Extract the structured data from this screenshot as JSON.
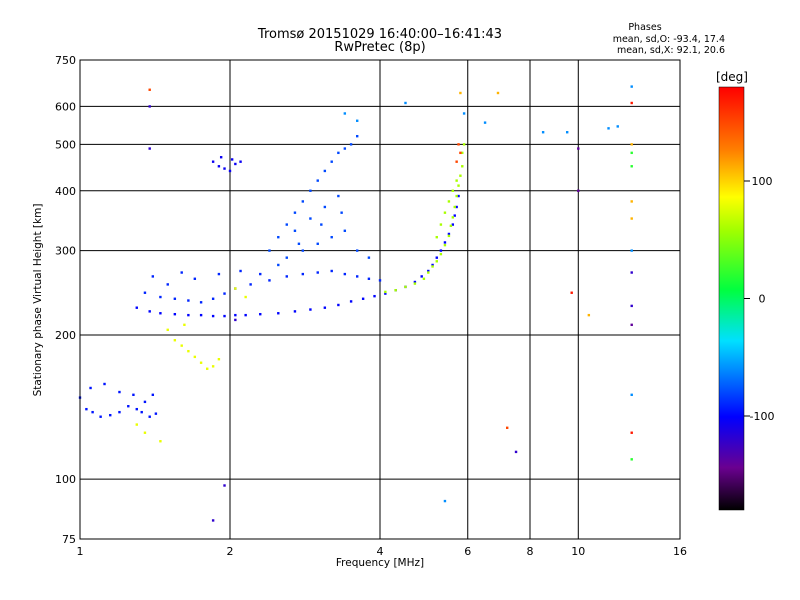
{
  "chart_data": {
    "type": "scatter",
    "title": "Tromsø 20151029 16:40:00–16:41:43",
    "subtitle": "RwPretec (8p)",
    "xlabel": "Frequency [MHz]",
    "ylabel": "Stationary phase Virtual Height [km]",
    "x_scale": "log",
    "y_scale": "log",
    "xlim": [
      1,
      16
    ],
    "ylim": [
      75,
      750
    ],
    "x_ticks": [
      1,
      2,
      4,
      6,
      8,
      10,
      16
    ],
    "x_tick_labels": [
      "1",
      "2",
      "4",
      "6",
      "8",
      "10",
      "16"
    ],
    "x_gridlines": [
      2,
      4,
      6,
      8,
      10
    ],
    "y_ticks": [
      75,
      100,
      200,
      300,
      400,
      500,
      600,
      750
    ],
    "y_tick_labels": [
      "75",
      "100",
      "200",
      "300",
      "400",
      "500",
      "600",
      "750"
    ],
    "y_gridlines": [
      100,
      200,
      300,
      400,
      500,
      600
    ],
    "grid": true,
    "stats": {
      "header": "Phases",
      "line_o": "mean, sd,O: -93.4, 17.4",
      "line_x": "mean, sd,X:  92.1, 20.6"
    },
    "colorbar": {
      "unit": "[deg]",
      "range": [
        -180,
        180
      ],
      "ticks": [
        100,
        0,
        -100
      ],
      "tick_labels": [
        "100",
        "0",
        "-100"
      ],
      "colormap": "rainbow"
    },
    "traces": [
      {
        "name": "",
        "phase": -95,
        "points": [
          [
            1.0,
            148
          ],
          [
            1.03,
            140
          ],
          [
            1.06,
            138
          ],
          [
            1.1,
            135
          ],
          [
            1.15,
            136
          ],
          [
            1.2,
            138
          ],
          [
            1.25,
            142
          ],
          [
            1.3,
            140
          ],
          [
            1.35,
            145
          ],
          [
            1.4,
            150
          ],
          [
            1.05,
            155
          ],
          [
            1.12,
            158
          ],
          [
            1.2,
            152
          ],
          [
            1.28,
            150
          ],
          [
            1.33,
            138
          ],
          [
            1.38,
            135
          ],
          [
            1.42,
            137
          ]
        ]
      },
      {
        "name": "",
        "phase": -100,
        "points": [
          [
            1.3,
            228
          ],
          [
            1.38,
            224
          ],
          [
            1.45,
            222
          ],
          [
            1.55,
            221
          ],
          [
            1.65,
            220
          ],
          [
            1.75,
            220
          ],
          [
            1.85,
            219
          ],
          [
            1.95,
            219
          ],
          [
            2.05,
            220
          ],
          [
            2.15,
            220
          ],
          [
            2.3,
            221
          ],
          [
            2.5,
            222
          ],
          [
            2.7,
            224
          ],
          [
            2.9,
            226
          ],
          [
            3.1,
            228
          ],
          [
            3.3,
            231
          ],
          [
            3.5,
            235
          ],
          [
            3.7,
            238
          ],
          [
            3.9,
            241
          ],
          [
            4.1,
            244
          ],
          [
            4.3,
            248
          ],
          [
            4.5,
            252
          ],
          [
            4.7,
            258
          ],
          [
            4.85,
            265
          ],
          [
            5.0,
            272
          ],
          [
            5.1,
            280
          ],
          [
            5.2,
            290
          ],
          [
            5.3,
            300
          ],
          [
            5.4,
            312
          ],
          [
            5.5,
            325
          ],
          [
            5.6,
            340
          ],
          [
            5.65,
            355
          ],
          [
            5.7,
            370
          ],
          [
            5.75,
            390
          ]
        ]
      },
      {
        "name": "",
        "phase": -90,
        "points": [
          [
            1.35,
            245
          ],
          [
            1.45,
            240
          ],
          [
            1.55,
            238
          ],
          [
            1.65,
            236
          ],
          [
            1.75,
            234
          ],
          [
            1.85,
            238
          ],
          [
            1.95,
            244
          ],
          [
            2.05,
            250
          ],
          [
            2.2,
            255
          ],
          [
            2.4,
            260
          ],
          [
            2.6,
            265
          ],
          [
            2.8,
            268
          ],
          [
            3.0,
            270
          ],
          [
            3.2,
            272
          ],
          [
            3.4,
            268
          ],
          [
            3.6,
            265
          ],
          [
            3.8,
            262
          ],
          [
            4.0,
            260
          ],
          [
            1.5,
            255
          ],
          [
            1.7,
            262
          ],
          [
            1.9,
            268
          ],
          [
            2.1,
            272
          ],
          [
            2.3,
            268
          ],
          [
            1.4,
            265
          ],
          [
            1.6,
            270
          ]
        ]
      },
      {
        "name": "",
        "phase": -80,
        "points": [
          [
            2.4,
            300
          ],
          [
            2.5,
            320
          ],
          [
            2.6,
            340
          ],
          [
            2.7,
            360
          ],
          [
            2.8,
            380
          ],
          [
            2.9,
            400
          ],
          [
            3.0,
            420
          ],
          [
            3.1,
            440
          ],
          [
            3.2,
            460
          ],
          [
            3.3,
            480
          ],
          [
            3.4,
            490
          ],
          [
            3.5,
            500
          ],
          [
            3.6,
            520
          ],
          [
            2.6,
            290
          ],
          [
            2.8,
            300
          ],
          [
            3.0,
            310
          ],
          [
            3.2,
            320
          ],
          [
            3.4,
            330
          ],
          [
            3.6,
            300
          ],
          [
            3.8,
            290
          ],
          [
            2.7,
            330
          ],
          [
            2.9,
            350
          ],
          [
            3.1,
            370
          ],
          [
            3.3,
            390
          ],
          [
            2.5,
            280
          ],
          [
            2.75,
            310
          ],
          [
            3.05,
            340
          ],
          [
            3.35,
            360
          ]
        ]
      },
      {
        "name": "",
        "phase": -105,
        "points": [
          [
            1.85,
            460
          ],
          [
            1.9,
            450
          ],
          [
            1.95,
            445
          ],
          [
            2.0,
            440
          ],
          [
            2.05,
            455
          ],
          [
            2.1,
            460
          ],
          [
            1.92,
            470
          ],
          [
            2.02,
            465
          ]
        ]
      },
      {
        "name": "",
        "phase": 60,
        "points": [
          [
            4.1,
            246
          ],
          [
            4.3,
            248
          ],
          [
            4.5,
            252
          ],
          [
            4.7,
            256
          ],
          [
            4.9,
            262
          ],
          [
            5.0,
            270
          ],
          [
            5.1,
            278
          ],
          [
            5.2,
            285
          ],
          [
            5.3,
            295
          ],
          [
            5.4,
            308
          ],
          [
            5.5,
            322
          ],
          [
            5.55,
            338
          ],
          [
            5.6,
            352
          ],
          [
            5.65,
            370
          ],
          [
            5.7,
            390
          ],
          [
            5.75,
            410
          ],
          [
            5.8,
            430
          ],
          [
            5.85,
            450
          ],
          [
            5.85,
            480
          ],
          [
            5.9,
            500
          ],
          [
            5.2,
            320
          ],
          [
            5.3,
            340
          ],
          [
            5.4,
            360
          ],
          [
            5.5,
            380
          ],
          [
            5.6,
            400
          ],
          [
            5.7,
            420
          ]
        ]
      },
      {
        "name": "",
        "phase": 150,
        "points": [
          [
            5.75,
            500
          ],
          [
            5.8,
            480
          ],
          [
            5.7,
            460
          ],
          [
            1.38,
            650
          ],
          [
            7.2,
            128
          ]
        ]
      },
      {
        "name": "",
        "phase": 80,
        "points": [
          [
            1.55,
            195
          ],
          [
            1.6,
            190
          ],
          [
            1.65,
            185
          ],
          [
            1.7,
            180
          ],
          [
            1.75,
            175
          ],
          [
            1.8,
            170
          ],
          [
            1.85,
            172
          ],
          [
            1.9,
            178
          ],
          [
            1.3,
            130
          ],
          [
            1.35,
            125
          ],
          [
            1.45,
            120
          ],
          [
            2.05,
            250
          ],
          [
            2.15,
            240
          ],
          [
            1.5,
            205
          ],
          [
            1.62,
            210
          ]
        ]
      },
      {
        "name": "",
        "phase": -120,
        "points": [
          [
            1.38,
            600
          ],
          [
            1.38,
            490
          ],
          [
            1.85,
            82
          ],
          [
            1.95,
            97
          ],
          [
            2.05,
            215
          ],
          [
            7.5,
            114
          ],
          [
            12.8,
            230
          ],
          [
            12.8,
            270
          ]
        ]
      },
      {
        "name": "",
        "phase": -60,
        "points": [
          [
            3.4,
            580
          ],
          [
            3.6,
            560
          ],
          [
            4.5,
            610
          ],
          [
            5.9,
            580
          ],
          [
            6.5,
            555
          ],
          [
            8.5,
            530
          ],
          [
            9.5,
            530
          ],
          [
            11.5,
            540
          ],
          [
            12,
            545
          ],
          [
            12.8,
            660
          ],
          [
            12.8,
            300
          ],
          [
            12.8,
            150
          ],
          [
            5.4,
            90
          ]
        ]
      },
      {
        "name": "",
        "phase": 110,
        "points": [
          [
            10.5,
            220
          ],
          [
            12.8,
            380
          ],
          [
            12.8,
            350
          ],
          [
            12.8,
            500
          ],
          [
            6.9,
            640
          ],
          [
            5.8,
            640
          ]
        ]
      },
      {
        "name": "",
        "phase": 170,
        "points": [
          [
            12.8,
            610
          ],
          [
            9.7,
            245
          ],
          [
            12.8,
            125
          ]
        ]
      },
      {
        "name": "",
        "phase": 20,
        "points": [
          [
            12.8,
            110
          ],
          [
            12.8,
            450
          ],
          [
            12.8,
            480
          ]
        ]
      },
      {
        "name": "",
        "phase": -140,
        "points": [
          [
            10.0,
            490
          ],
          [
            10.0,
            400
          ],
          [
            12.8,
            210
          ]
        ]
      }
    ]
  }
}
